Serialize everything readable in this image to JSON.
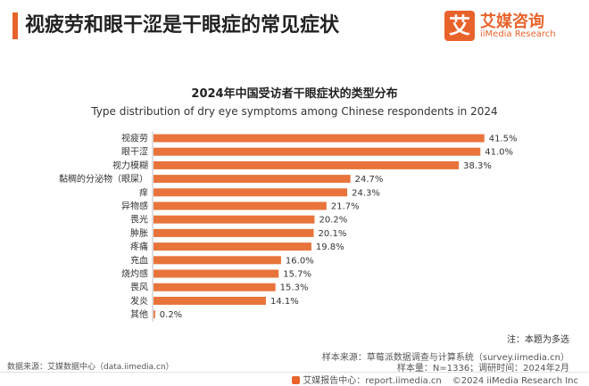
{
  "header": {
    "title": "视疲劳和眼干涩是干眼症的常见症状"
  },
  "brand": {
    "logo_char": "艾",
    "name": "艾媒咨询",
    "sub": "iiMedia Research",
    "color": "#e8632b"
  },
  "chart_data": {
    "type": "bar",
    "orientation": "horizontal",
    "title": "2024年中国受访者干眼症状的类型分布",
    "subtitle": "Type distribution of dry eye symptoms among Chinese respondents in 2024",
    "categories": [
      "视疲劳",
      "眼干涩",
      "视力模糊",
      "黏稠的分泌物（眼屎）",
      "痒",
      "异物感",
      "畏光",
      "肿胀",
      "疼痛",
      "充血",
      "烧灼感",
      "畏风",
      "发炎",
      "其他"
    ],
    "values": [
      41.5,
      41.0,
      38.3,
      24.7,
      24.3,
      21.7,
      20.2,
      20.1,
      19.8,
      16.0,
      15.7,
      15.3,
      14.1,
      0.2
    ],
    "value_labels": [
      "41.5%",
      "41.0%",
      "38.3%",
      "24.7%",
      "24.3%",
      "21.7%",
      "20.2%",
      "20.1%",
      "19.8%",
      "16.0%",
      "15.7%",
      "15.3%",
      "14.1%",
      "0.2%"
    ],
    "bar_color": "#e8743b",
    "xlim": [
      0,
      45
    ],
    "grid": false,
    "legend": "none"
  },
  "notes": {
    "multi_select": "注：本题为多选",
    "sample_source": "样本来源：草莓派数据调查与计算系统（survey.iimedia.cn）",
    "sample_info": "样本量：N=1336；调研时间：2024年2月",
    "data_source": "数据来源：艾媒数据中心（data.iimedia.cn）"
  },
  "footer": {
    "center": "艾媒报告中心：report.iimedia.cn",
    "copyright": "©2024  iiMedia Research  Inc"
  }
}
